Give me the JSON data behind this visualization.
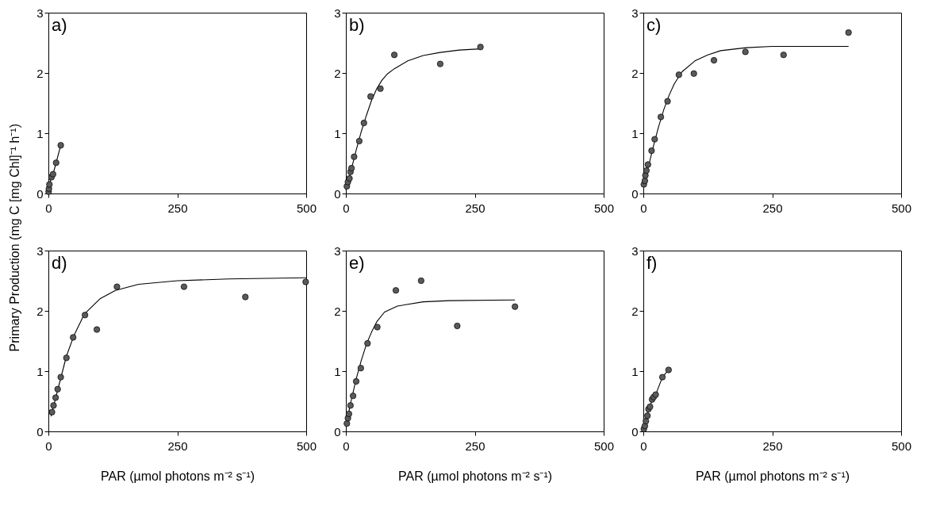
{
  "chart_data": [
    {
      "type": "scatter",
      "annotations": [
        "a)"
      ],
      "ylabel": "Primary Production (mg C [mg Chl]⁻¹ h⁻¹)",
      "xlim": [
        0,
        500
      ],
      "xticks": [
        0,
        250,
        500
      ],
      "ylim": [
        0,
        3
      ],
      "yticks": [
        0,
        1,
        2,
        3
      ],
      "line_style": "solid",
      "series": [
        {
          "type": "line",
          "marker": "none",
          "color": "#000000",
          "x": [
            0.5,
            1,
            2,
            6,
            9,
            15,
            24
          ],
          "values": [
            0.03,
            0.08,
            0.15,
            0.27,
            0.32,
            0.51,
            0.8
          ]
        },
        {
          "marker": "circle",
          "color": "#5a5a5a",
          "x": [
            0.5,
            1,
            2,
            6,
            9,
            15,
            24
          ],
          "values": [
            0.03,
            0.08,
            0.15,
            0.27,
            0.32,
            0.51,
            0.8
          ]
        }
      ]
    },
    {
      "type": "scatter",
      "annotations": [
        "b)"
      ],
      "xlim": [
        0,
        500
      ],
      "xticks": [
        0,
        250,
        500
      ],
      "ylim": [
        0,
        3
      ],
      "yticks": [
        0,
        1,
        2,
        3
      ],
      "line_style": "solid",
      "series": [
        {
          "type": "line",
          "marker": "none",
          "color": "#000000",
          "x": [
            0,
            10,
            20,
            30,
            40,
            50,
            60,
            70,
            80,
            94,
            120,
            150,
            183,
            220,
            261
          ],
          "values": [
            0.05,
            0.38,
            0.72,
            1.03,
            1.3,
            1.55,
            1.74,
            1.88,
            1.98,
            2.07,
            2.2,
            2.29,
            2.34,
            2.38,
            2.4
          ]
        },
        {
          "marker": "circle",
          "color": "#5a5a5a",
          "x": [
            2,
            4,
            7,
            9,
            11,
            16,
            26,
            35,
            48,
            67,
            94,
            183,
            261
          ],
          "values": [
            0.12,
            0.19,
            0.25,
            0.36,
            0.42,
            0.61,
            0.87,
            1.17,
            1.61,
            1.74,
            2.3,
            2.15,
            2.43
          ]
        }
      ]
    },
    {
      "type": "scatter",
      "annotations": [
        "c)"
      ],
      "xlim": [
        0,
        500
      ],
      "xticks": [
        0,
        250,
        500
      ],
      "ylim": [
        0,
        3
      ],
      "yticks": [
        0,
        1,
        2,
        3
      ],
      "line_style": "solid",
      "series": [
        {
          "type": "line",
          "marker": "none",
          "color": "#000000",
          "x": [
            0,
            10,
            20,
            30,
            40,
            50,
            60,
            75,
            100,
            125,
            150,
            200,
            250,
            300,
            398
          ],
          "values": [
            0.15,
            0.45,
            0.8,
            1.12,
            1.4,
            1.63,
            1.82,
            2.02,
            2.2,
            2.3,
            2.37,
            2.42,
            2.44,
            2.44,
            2.44
          ]
        },
        {
          "marker": "circle",
          "color": "#5a5a5a",
          "x": [
            1,
            3,
            4,
            6,
            9,
            16,
            22,
            34,
            47,
            69,
            98,
            137,
            198,
            272,
            398
          ],
          "values": [
            0.15,
            0.21,
            0.3,
            0.38,
            0.48,
            0.71,
            0.9,
            1.27,
            1.53,
            1.97,
            1.99,
            2.21,
            2.35,
            2.3,
            2.67
          ]
        }
      ]
    },
    {
      "type": "scatter",
      "annotations": [
        "d)"
      ],
      "xlabel": "PAR (µmol photons m⁻² s⁻¹)",
      "xlim": [
        0,
        500
      ],
      "xticks": [
        0,
        250,
        500
      ],
      "ylim": [
        0,
        3
      ],
      "yticks": [
        0,
        1,
        2,
        3
      ],
      "line_style": "solid",
      "series": [
        {
          "type": "line",
          "marker": "none",
          "color": "#000000",
          "x": [
            5,
            20,
            35,
            50,
            70,
            100,
            130,
            175,
            250,
            350,
            500
          ],
          "values": [
            0.25,
            0.75,
            1.25,
            1.6,
            1.95,
            2.2,
            2.34,
            2.44,
            2.5,
            2.53,
            2.55
          ]
        },
        {
          "marker": "circle",
          "color": "#5a5a5a",
          "x": [
            7,
            10,
            14,
            18,
            24,
            35,
            48,
            71,
            94,
            133,
            263,
            382,
            499
          ],
          "values": [
            0.32,
            0.43,
            0.56,
            0.7,
            0.9,
            1.22,
            1.56,
            1.93,
            1.69,
            2.4,
            2.4,
            2.23,
            2.48
          ]
        }
      ]
    },
    {
      "type": "scatter",
      "annotations": [
        "e)"
      ],
      "xlabel": "PAR (µmol photons m⁻² s⁻¹)",
      "xlim": [
        0,
        500
      ],
      "xticks": [
        0,
        250,
        500
      ],
      "ylim": [
        0,
        3
      ],
      "yticks": [
        0,
        1,
        2,
        3
      ],
      "line_style": "solid",
      "series": [
        {
          "type": "line",
          "marker": "none",
          "color": "#000000",
          "x": [
            0,
            10,
            20,
            30,
            40,
            50,
            60,
            75,
            100,
            150,
            200,
            328
          ],
          "values": [
            0.08,
            0.5,
            0.87,
            1.18,
            1.45,
            1.65,
            1.82,
            1.98,
            2.08,
            2.15,
            2.17,
            2.18
          ]
        },
        {
          "marker": "circle",
          "color": "#5a5a5a",
          "x": [
            2,
            4,
            6,
            9,
            14,
            20,
            29,
            42,
            61,
            97,
            146,
            216,
            328
          ],
          "values": [
            0.13,
            0.22,
            0.29,
            0.43,
            0.59,
            0.83,
            1.05,
            1.46,
            1.73,
            2.34,
            2.5,
            1.75,
            2.07
          ]
        }
      ]
    },
    {
      "type": "scatter",
      "annotations": [
        "f)"
      ],
      "xlabel": "PAR (µmol photons m⁻² s⁻¹)",
      "xlim": [
        0,
        500
      ],
      "xticks": [
        0,
        250,
        500
      ],
      "ylim": [
        0,
        3
      ],
      "yticks": [
        0,
        1,
        2,
        3
      ],
      "line_style": "solid",
      "series": [
        {
          "type": "line",
          "marker": "none",
          "color": "#000000",
          "x": [
            1,
            3,
            5,
            8,
            10,
            13,
            17,
            20,
            24,
            37,
            49
          ],
          "values": [
            0.04,
            0.09,
            0.17,
            0.26,
            0.37,
            0.41,
            0.53,
            0.57,
            0.61,
            0.9,
            1.02
          ]
        },
        {
          "marker": "circle",
          "color": "#5a5a5a",
          "x": [
            1,
            3,
            5,
            8,
            10,
            13,
            17,
            20,
            24,
            37,
            49
          ],
          "values": [
            0.04,
            0.09,
            0.17,
            0.26,
            0.37,
            0.41,
            0.53,
            0.57,
            0.61,
            0.9,
            1.02
          ]
        }
      ]
    }
  ]
}
